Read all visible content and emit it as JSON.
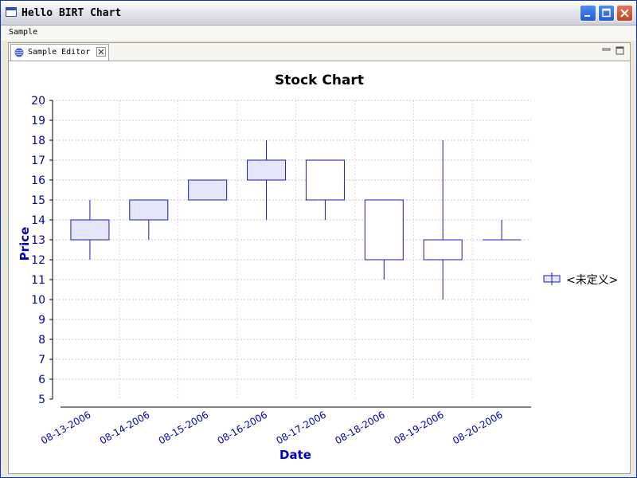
{
  "window": {
    "title": "Hello BIRT Chart"
  },
  "menu": {
    "items": [
      "Sample"
    ]
  },
  "editor": {
    "tab_label": "Sample Editor"
  },
  "icons": {
    "app": "window-icon",
    "tab": "chart-icon",
    "close": "close-icon",
    "minimize": "minimize-icon",
    "maximize": "maximize-icon"
  },
  "colors": {
    "series_stroke": "#1a1ab4",
    "candle_fill": "#e6e6fa",
    "axis_label": "#0000b4",
    "grid_h": "#b0b0e0",
    "grid_v": "#f0b8d8"
  },
  "chart_data": {
    "type": "stock",
    "title": "Stock Chart",
    "xlabel": "Date",
    "ylabel": "Price",
    "ylim": [
      5,
      20
    ],
    "categories": [
      "08-13-2006",
      "08-14-2006",
      "08-15-2006",
      "08-16-2006",
      "08-17-2006",
      "08-18-2006",
      "08-19-2006",
      "08-20-2006"
    ],
    "series": [
      {
        "name": "<未定义>",
        "open": [
          13,
          14,
          15,
          16,
          17,
          15,
          13,
          13
        ],
        "high": [
          15,
          15,
          16,
          18,
          17,
          15,
          18,
          14
        ],
        "low": [
          12,
          13,
          15,
          14,
          14,
          11,
          10,
          13
        ],
        "close": [
          14,
          15,
          16,
          17,
          15,
          12,
          12,
          13
        ]
      }
    ],
    "legend_position": "right",
    "grid": true
  }
}
